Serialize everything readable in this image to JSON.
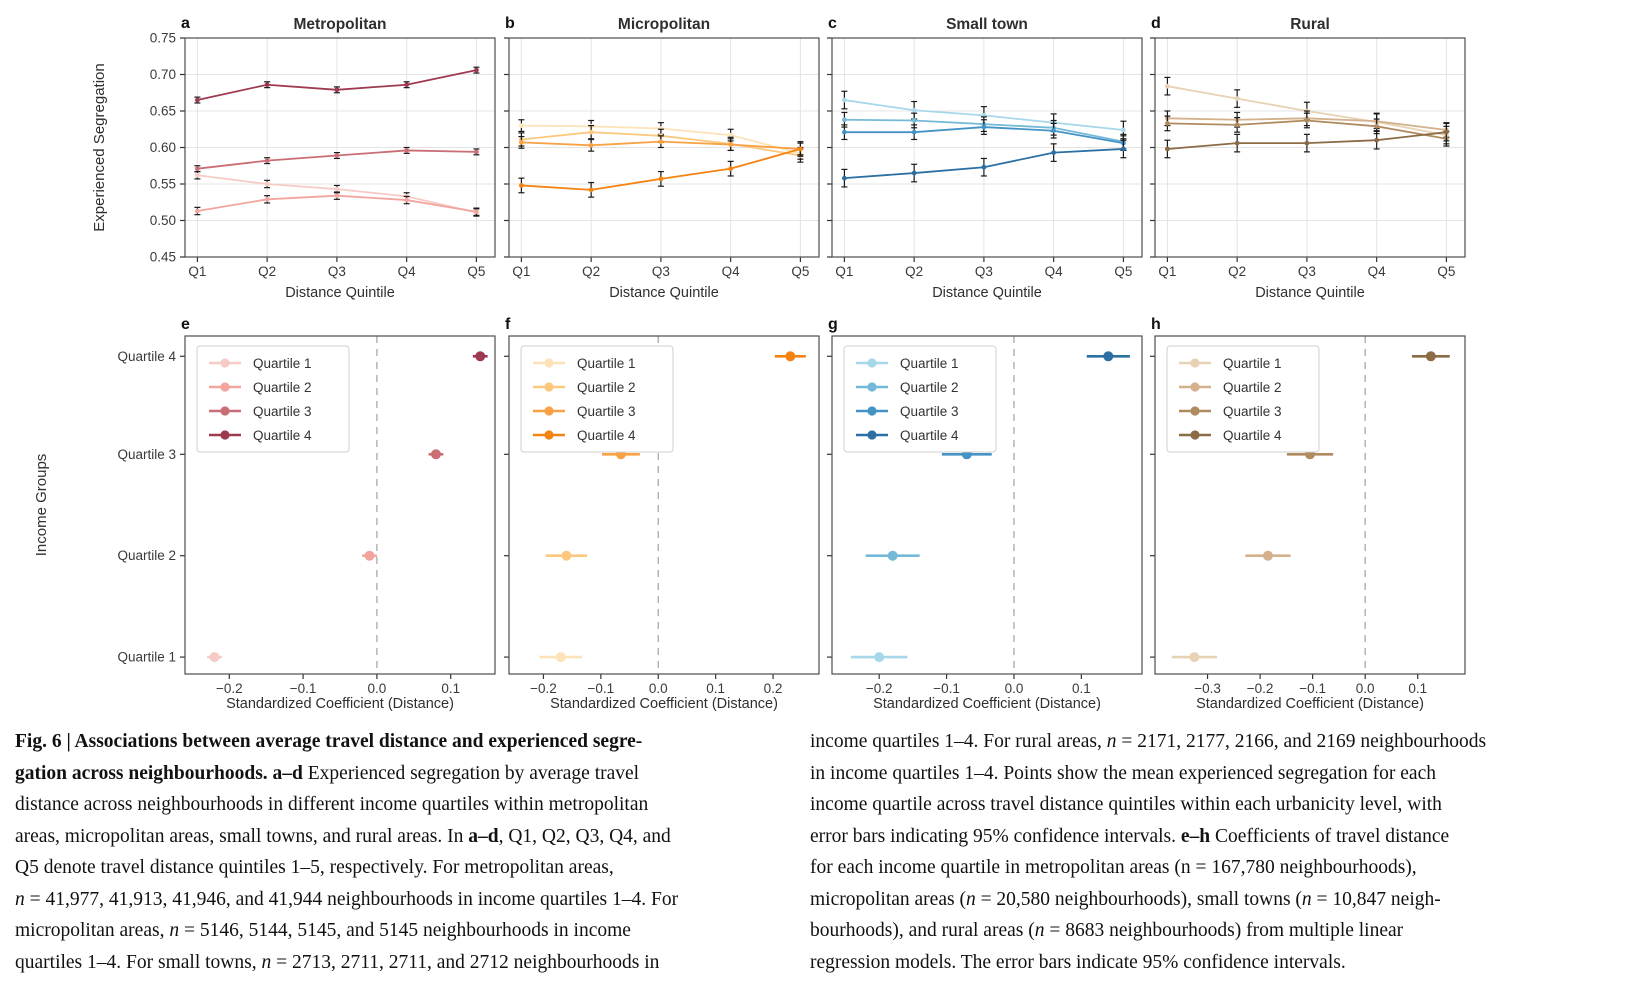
{
  "figure": {
    "caption": {
      "left_lines": [
        [
          {
            "t": "Fig. 6 | Associations between average travel distance and experienced segre-",
            "b": 1
          }
        ],
        [
          {
            "t": "gation across neighbourhoods. a–d",
            "b": 1
          },
          {
            "t": " Experienced segregation by average travel"
          }
        ],
        [
          {
            "t": "distance across neighbourhoods in different income quartiles within metropolitan"
          }
        ],
        [
          {
            "t": "areas, micropolitan areas, small towns, and rural areas. In "
          },
          {
            "t": "a–d",
            "b": 1
          },
          {
            "t": ", Q1, Q2, Q3, Q4, and"
          }
        ],
        [
          {
            "t": "Q5 denote travel distance quintiles 1–5, respectively. For metropolitan areas,"
          }
        ],
        [
          {
            "t": "n",
            "i": 1
          },
          {
            "t": " = 41,977, 41,913, 41,946, and 41,944 neighbourhoods in income quartiles 1–4. For"
          }
        ],
        [
          {
            "t": "micropolitan areas, "
          },
          {
            "t": "n",
            "i": 1
          },
          {
            "t": " = 5146, 5144, 5145, and 5145 neighbourhoods in income"
          }
        ],
        [
          {
            "t": "quartiles 1–4. For small towns, "
          },
          {
            "t": "n",
            "i": 1
          },
          {
            "t": " = 2713, 2711, 2711, and 2712 neighbourhoods in"
          }
        ]
      ],
      "right_lines": [
        [
          {
            "t": "income quartiles 1–4. For rural areas, "
          },
          {
            "t": "n",
            "i": 1
          },
          {
            "t": " = 2171, 2177, 2166, and 2169 neighbourhoods"
          }
        ],
        [
          {
            "t": "in income quartiles 1–4. Points show the mean experienced segregation for each"
          }
        ],
        [
          {
            "t": "income quartile across travel distance quintiles within each urbanicity level, with"
          }
        ],
        [
          {
            "t": "error bars indicating 95% confidence intervals. "
          },
          {
            "t": "e–h",
            "b": 1
          },
          {
            "t": " Coefficients of travel distance"
          }
        ],
        [
          {
            "t": "for each income quartile in metropolitan areas (n = 167,780 neighbourhoods),"
          }
        ],
        [
          {
            "t": "micropolitan areas ("
          },
          {
            "t": "n",
            "i": 1
          },
          {
            "t": " = 20,580 neighbourhoods), small towns ("
          },
          {
            "t": "n",
            "i": 1
          },
          {
            "t": " = 10,847 neigh-"
          }
        ],
        [
          {
            "t": "bourhoods), and rural areas ("
          },
          {
            "t": "n",
            "i": 1
          },
          {
            "t": " = 8683 neighbourhoods) from multiple linear"
          }
        ],
        [
          {
            "t": "regression models. The error bars indicate 95% confidence intervals."
          }
        ]
      ]
    }
  },
  "chart_data": [
    {
      "panel": "a",
      "type": "line",
      "title": "Metropolitan",
      "xlabel": "Distance Quintile",
      "ylabel": "Experienced Segregation",
      "show_yticklabels": true,
      "categories": [
        "Q1",
        "Q2",
        "Q3",
        "Q4",
        "Q5"
      ],
      "ylim": [
        0.45,
        0.75
      ],
      "yticks": [
        0.45,
        0.5,
        0.55,
        0.6,
        0.65,
        0.7,
        0.75
      ],
      "series": [
        {
          "name": "Quartile 1",
          "color": "#f6cbc5",
          "err": 0.005,
          "values": [
            0.562,
            0.55,
            0.543,
            0.533,
            0.511
          ]
        },
        {
          "name": "Quartile 2",
          "color": "#f2a49e",
          "err": 0.005,
          "values": [
            0.513,
            0.529,
            0.534,
            0.528,
            0.512
          ]
        },
        {
          "name": "Quartile 3",
          "color": "#c96e74",
          "err": 0.004,
          "values": [
            0.571,
            0.582,
            0.589,
            0.596,
            0.594
          ]
        },
        {
          "name": "Quartile 4",
          "color": "#9e3a50",
          "err": 0.004,
          "values": [
            0.665,
            0.686,
            0.679,
            0.686,
            0.706
          ]
        }
      ]
    },
    {
      "panel": "b",
      "type": "line",
      "title": "Micropolitan",
      "xlabel": "Distance Quintile",
      "ylabel": "",
      "show_yticklabels": false,
      "categories": [
        "Q1",
        "Q2",
        "Q3",
        "Q4",
        "Q5"
      ],
      "ylim": [
        0.45,
        0.75
      ],
      "yticks": [
        0.45,
        0.5,
        0.55,
        0.6,
        0.65,
        0.7,
        0.75
      ],
      "series": [
        {
          "name": "Quartile 1",
          "color": "#fce3b8",
          "err": 0.008,
          "values": [
            0.63,
            0.629,
            0.626,
            0.617,
            0.592
          ]
        },
        {
          "name": "Quartile 2",
          "color": "#fcc87e",
          "err": 0.009,
          "values": [
            0.611,
            0.621,
            0.616,
            0.605,
            0.589
          ]
        },
        {
          "name": "Quartile 3",
          "color": "#f9a245",
          "err": 0.008,
          "values": [
            0.607,
            0.603,
            0.608,
            0.604,
            0.598
          ]
        },
        {
          "name": "Quartile 4",
          "color": "#f58311",
          "err": 0.01,
          "values": [
            0.548,
            0.542,
            0.557,
            0.571,
            0.598
          ]
        }
      ]
    },
    {
      "panel": "c",
      "type": "line",
      "title": "Small town",
      "xlabel": "Distance Quintile",
      "ylabel": "",
      "show_yticklabels": false,
      "categories": [
        "Q1",
        "Q2",
        "Q3",
        "Q4",
        "Q5"
      ],
      "ylim": [
        0.45,
        0.75
      ],
      "yticks": [
        0.45,
        0.5,
        0.55,
        0.6,
        0.65,
        0.7,
        0.75
      ],
      "series": [
        {
          "name": "Quartile 1",
          "color": "#a7d8e9",
          "err": 0.012,
          "values": [
            0.665,
            0.651,
            0.644,
            0.634,
            0.624
          ]
        },
        {
          "name": "Quartile 2",
          "color": "#74b9d7",
          "err": 0.01,
          "values": [
            0.638,
            0.637,
            0.632,
            0.627,
            0.608
          ]
        },
        {
          "name": "Quartile 3",
          "color": "#4593c5",
          "err": 0.01,
          "values": [
            0.621,
            0.621,
            0.628,
            0.623,
            0.606
          ]
        },
        {
          "name": "Quartile 4",
          "color": "#2c6fa3",
          "err": 0.012,
          "values": [
            0.558,
            0.565,
            0.573,
            0.593,
            0.598
          ]
        }
      ]
    },
    {
      "panel": "d",
      "type": "line",
      "title": "Rural",
      "xlabel": "Distance Quintile",
      "ylabel": "",
      "show_yticklabels": false,
      "categories": [
        "Q1",
        "Q2",
        "Q3",
        "Q4",
        "Q5"
      ],
      "ylim": [
        0.45,
        0.75
      ],
      "yticks": [
        0.45,
        0.5,
        0.55,
        0.6,
        0.65,
        0.7,
        0.75
      ],
      "series": [
        {
          "name": "Quartile 1",
          "color": "#e7d3b4",
          "err": 0.012,
          "values": [
            0.684,
            0.667,
            0.65,
            0.635,
            0.617
          ]
        },
        {
          "name": "Quartile 2",
          "color": "#d3b18c",
          "err": 0.01,
          "values": [
            0.64,
            0.638,
            0.64,
            0.636,
            0.624
          ]
        },
        {
          "name": "Quartile 3",
          "color": "#b08b60",
          "err": 0.01,
          "values": [
            0.633,
            0.631,
            0.637,
            0.629,
            0.612
          ]
        },
        {
          "name": "Quartile 4",
          "color": "#8c6b47",
          "err": 0.012,
          "values": [
            0.598,
            0.606,
            0.606,
            0.61,
            0.621
          ]
        }
      ]
    },
    {
      "panel": "e",
      "type": "coef",
      "xlabel": "Standardized Coefficient (Distance)",
      "ylabel": "Income Groups",
      "show_yticklabels": true,
      "categories": [
        "Quartile 1",
        "Quartile 2",
        "Quartile 3",
        "Quartile 4"
      ],
      "xlim": [
        -0.26,
        0.16
      ],
      "xticks": [
        -0.2,
        -0.1,
        0.0,
        0.1
      ],
      "points": [
        {
          "group": "Quartile 1",
          "color": "#f6cbc5",
          "value": -0.22,
          "ci": 0.01
        },
        {
          "group": "Quartile 2",
          "color": "#f2a49e",
          "value": -0.01,
          "ci": 0.01
        },
        {
          "group": "Quartile 3",
          "color": "#c96e74",
          "value": 0.08,
          "ci": 0.01
        },
        {
          "group": "Quartile 4",
          "color": "#9e3a50",
          "value": 0.14,
          "ci": 0.01
        }
      ]
    },
    {
      "panel": "f",
      "type": "coef",
      "xlabel": "Standardized Coefficient (Distance)",
      "ylabel": "",
      "show_yticklabels": false,
      "categories": [
        "Quartile 1",
        "Quartile 2",
        "Quartile 3",
        "Quartile 4"
      ],
      "xlim": [
        -0.26,
        0.28
      ],
      "xticks": [
        -0.2,
        -0.1,
        0.0,
        0.1,
        0.2
      ],
      "points": [
        {
          "group": "Quartile 1",
          "color": "#fce3b8",
          "value": -0.17,
          "ci": 0.037
        },
        {
          "group": "Quartile 2",
          "color": "#fcc87e",
          "value": -0.16,
          "ci": 0.036
        },
        {
          "group": "Quartile 3",
          "color": "#f9a245",
          "value": -0.065,
          "ci": 0.033
        },
        {
          "group": "Quartile 4",
          "color": "#f58311",
          "value": 0.23,
          "ci": 0.027
        }
      ]
    },
    {
      "panel": "g",
      "type": "coef",
      "xlabel": "Standardized Coefficient (Distance)",
      "ylabel": "",
      "show_yticklabels": false,
      "categories": [
        "Quartile 1",
        "Quartile 2",
        "Quartile 3",
        "Quartile 4"
      ],
      "xlim": [
        -0.27,
        0.19
      ],
      "xticks": [
        -0.2,
        -0.1,
        0.0,
        0.1
      ],
      "points": [
        {
          "group": "Quartile 1",
          "color": "#a7d8e9",
          "value": -0.2,
          "ci": 0.042
        },
        {
          "group": "Quartile 2",
          "color": "#74b9d7",
          "value": -0.18,
          "ci": 0.04
        },
        {
          "group": "Quartile 3",
          "color": "#4593c5",
          "value": -0.07,
          "ci": 0.037
        },
        {
          "group": "Quartile 4",
          "color": "#2c6fa3",
          "value": 0.14,
          "ci": 0.032
        }
      ]
    },
    {
      "panel": "h",
      "type": "coef",
      "xlabel": "Standardized Coefficient (Distance)",
      "ylabel": "",
      "show_yticklabels": false,
      "categories": [
        "Quartile 1",
        "Quartile 2",
        "Quartile 3",
        "Quartile 4"
      ],
      "xlim": [
        -0.4,
        0.19
      ],
      "xticks": [
        -0.3,
        -0.2,
        -0.1,
        0.0,
        0.1
      ],
      "points": [
        {
          "group": "Quartile 1",
          "color": "#e7d3b4",
          "value": -0.325,
          "ci": 0.043
        },
        {
          "group": "Quartile 2",
          "color": "#d3b18c",
          "value": -0.185,
          "ci": 0.043
        },
        {
          "group": "Quartile 3",
          "color": "#b08b60",
          "value": -0.105,
          "ci": 0.044
        },
        {
          "group": "Quartile 4",
          "color": "#8c6b47",
          "value": 0.125,
          "ci": 0.036
        }
      ]
    }
  ]
}
